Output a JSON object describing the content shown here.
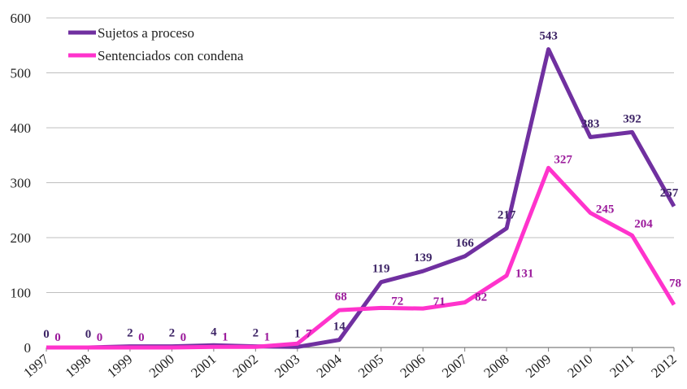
{
  "chart_data": {
    "type": "line",
    "title": "",
    "xlabel": "",
    "ylabel": "",
    "categories": [
      "1997",
      "1998",
      "1999",
      "2000",
      "2001",
      "2002",
      "2003",
      "2004",
      "2005",
      "2006",
      "2007",
      "2008",
      "2009",
      "2010",
      "2011",
      "2012"
    ],
    "ylim": [
      0,
      600
    ],
    "yticks": [
      0,
      100,
      200,
      300,
      400,
      500,
      600
    ],
    "grid": true,
    "legend_position": "top-left",
    "series": [
      {
        "name": "Sujetos a proceso",
        "color": "#7030a0",
        "values": [
          0,
          0,
          2,
          2,
          4,
          2,
          1,
          14,
          119,
          139,
          166,
          217,
          543,
          383,
          392,
          257
        ]
      },
      {
        "name": "Sentenciados con condena",
        "color": "#ff33cc",
        "values": [
          0,
          0,
          0,
          0,
          1,
          1,
          7,
          68,
          72,
          71,
          82,
          131,
          327,
          245,
          204,
          78
        ]
      }
    ]
  }
}
